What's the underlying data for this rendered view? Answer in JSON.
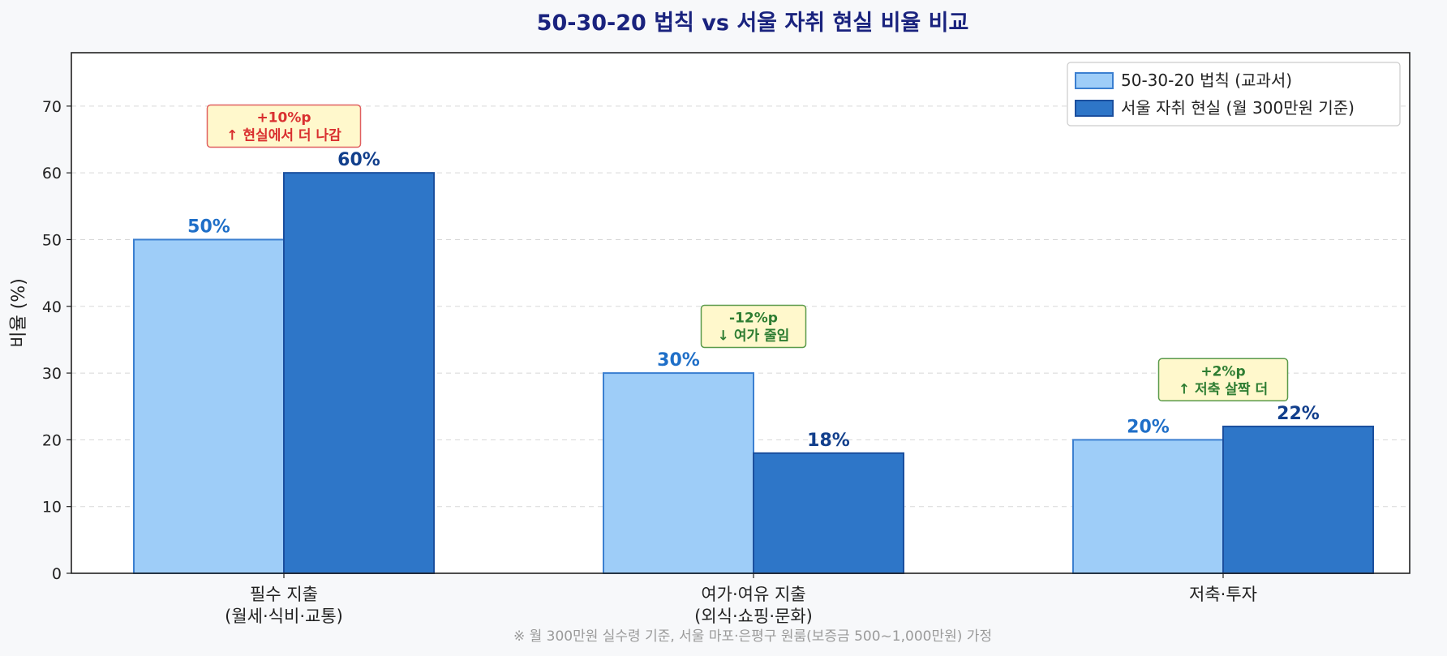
{
  "chart_data": {
    "type": "bar",
    "title": "50-30-20 법칙 vs 서울 자취 현실 비율 비교",
    "ylabel": "비율 (%)",
    "xlabel": "",
    "ylim": [
      0,
      78
    ],
    "yticks": [
      0,
      10,
      20,
      30,
      40,
      50,
      60,
      70
    ],
    "grid": "y-dashed",
    "legend_position": "top-right",
    "categories": [
      [
        "필수 지출",
        "(월세·식비·교통)"
      ],
      [
        "여가·여유 지출",
        "(외식·쇼핑·문화)"
      ],
      [
        "저축·투자"
      ]
    ],
    "series": [
      {
        "name": "50-30-20 법칙 (교과서)",
        "values": [
          50,
          30,
          20
        ],
        "labels": [
          "50%",
          "30%",
          "20%"
        ],
        "fill": "#9ecdf8",
        "stroke": "#3b7fd0",
        "label_color": "#1f6fc8"
      },
      {
        "name": "서울 자취 현실 (월 300만원 기준)",
        "values": [
          60,
          18,
          22
        ],
        "labels": [
          "60%",
          "18%",
          "22%"
        ],
        "fill": "#2e76c8",
        "stroke": "#1b4f9e",
        "label_color": "#123f8c"
      }
    ],
    "annotations": [
      {
        "category": 0,
        "y": 67,
        "lines": [
          "+10%p",
          "↑ 현실에서 더 나감"
        ],
        "text_color": "#d93030",
        "border_color": "#e06060",
        "bg": "#fff8cc"
      },
      {
        "category": 1,
        "y": 37,
        "lines": [
          "-12%p",
          "↓ 여가 줄임"
        ],
        "text_color": "#2e7d32",
        "border_color": "#5a9a4a",
        "bg": "#fff8cc"
      },
      {
        "category": 2,
        "y": 29,
        "lines": [
          "+2%p",
          "↑ 저축 살짝 더"
        ],
        "text_color": "#2e7d32",
        "border_color": "#5a9a4a",
        "bg": "#fff8cc"
      }
    ],
    "footnote": "※ 월 300만원 실수령 기준, 서울 마포·은평구 원룸(보증금 500~1,000만원) 가정"
  }
}
